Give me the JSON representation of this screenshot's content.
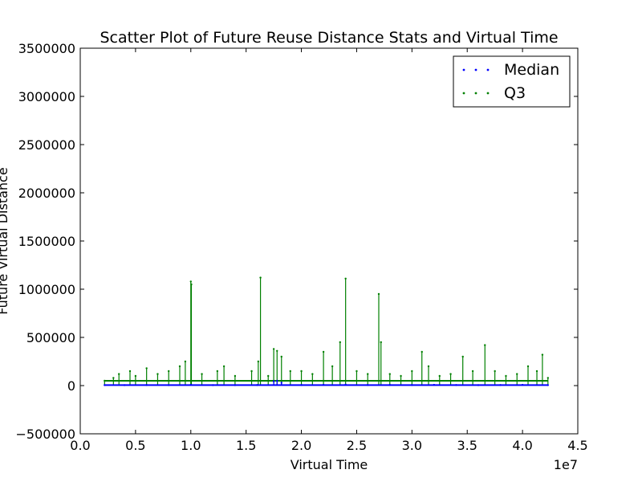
{
  "chart_data": {
    "type": "scatter",
    "title": "Scatter Plot of Future Reuse Distance Stats and Virtual Time",
    "xlabel": "Virtual Time",
    "ylabel": "Future Virtual Distance",
    "x_offset_label": "1e7",
    "xlim": [
      0,
      45000000
    ],
    "ylim": [
      -500000,
      3500000
    ],
    "x_ticks": [
      0,
      5000000,
      10000000,
      15000000,
      20000000,
      25000000,
      30000000,
      35000000,
      40000000,
      45000000
    ],
    "x_tick_labels": [
      "0.0",
      "0.5",
      "1.0",
      "1.5",
      "2.0",
      "2.5",
      "3.0",
      "3.5",
      "4.0",
      "4.5"
    ],
    "y_ticks": [
      -500000,
      0,
      500000,
      1000000,
      1500000,
      2000000,
      2500000,
      3000000,
      3500000
    ],
    "y_tick_labels": [
      "−500000",
      "0",
      "500000",
      "1000000",
      "1500000",
      "2000000",
      "2500000",
      "3000000",
      "3500000"
    ],
    "legend_position": "top-right",
    "grid": false,
    "series": [
      {
        "name": "Median",
        "color": "#0000ff",
        "x": [
          2200000,
          4000000,
          6000000,
          8000000,
          10000000,
          12000000,
          14000000,
          16000000,
          17500000,
          17800000,
          18200000,
          20000000,
          22000000,
          24000000,
          26000000,
          28000000,
          30000000,
          32000000,
          34000000,
          36000000,
          38000000,
          40000000,
          42300000
        ],
        "y": [
          5000,
          5000,
          6000,
          5000,
          8000,
          5000,
          5000,
          6000,
          45000,
          50000,
          30000,
          6000,
          8000,
          10000,
          6000,
          7000,
          6000,
          8000,
          6000,
          5000,
          6000,
          8000,
          5000
        ]
      },
      {
        "name": "Q3",
        "color": "#008000",
        "x": [
          2200000,
          3000000,
          3500000,
          4500000,
          5000000,
          6000000,
          7000000,
          8000000,
          9000000,
          9500000,
          10000000,
          10050000,
          11000000,
          12400000,
          13000000,
          14000000,
          15500000,
          16100000,
          16300000,
          17000000,
          17500000,
          17800000,
          18200000,
          19000000,
          20000000,
          21000000,
          22000000,
          22800000,
          23500000,
          24000000,
          25000000,
          26000000,
          27000000,
          27200000,
          28000000,
          29000000,
          30000000,
          30900000,
          31500000,
          32500000,
          33500000,
          34600000,
          35500000,
          36600000,
          37500000,
          38500000,
          39500000,
          40500000,
          41300000,
          41800000,
          42300000
        ],
        "y": [
          50000,
          80000,
          120000,
          150000,
          100000,
          180000,
          120000,
          150000,
          200000,
          250000,
          1080000,
          1050000,
          120000,
          150000,
          200000,
          100000,
          150000,
          250000,
          1120000,
          100000,
          380000,
          360000,
          300000,
          150000,
          150000,
          120000,
          350000,
          200000,
          450000,
          1110000,
          150000,
          120000,
          950000,
          450000,
          120000,
          100000,
          150000,
          350000,
          200000,
          100000,
          120000,
          300000,
          150000,
          420000,
          150000,
          100000,
          120000,
          200000,
          150000,
          320000,
          80000
        ]
      }
    ]
  }
}
